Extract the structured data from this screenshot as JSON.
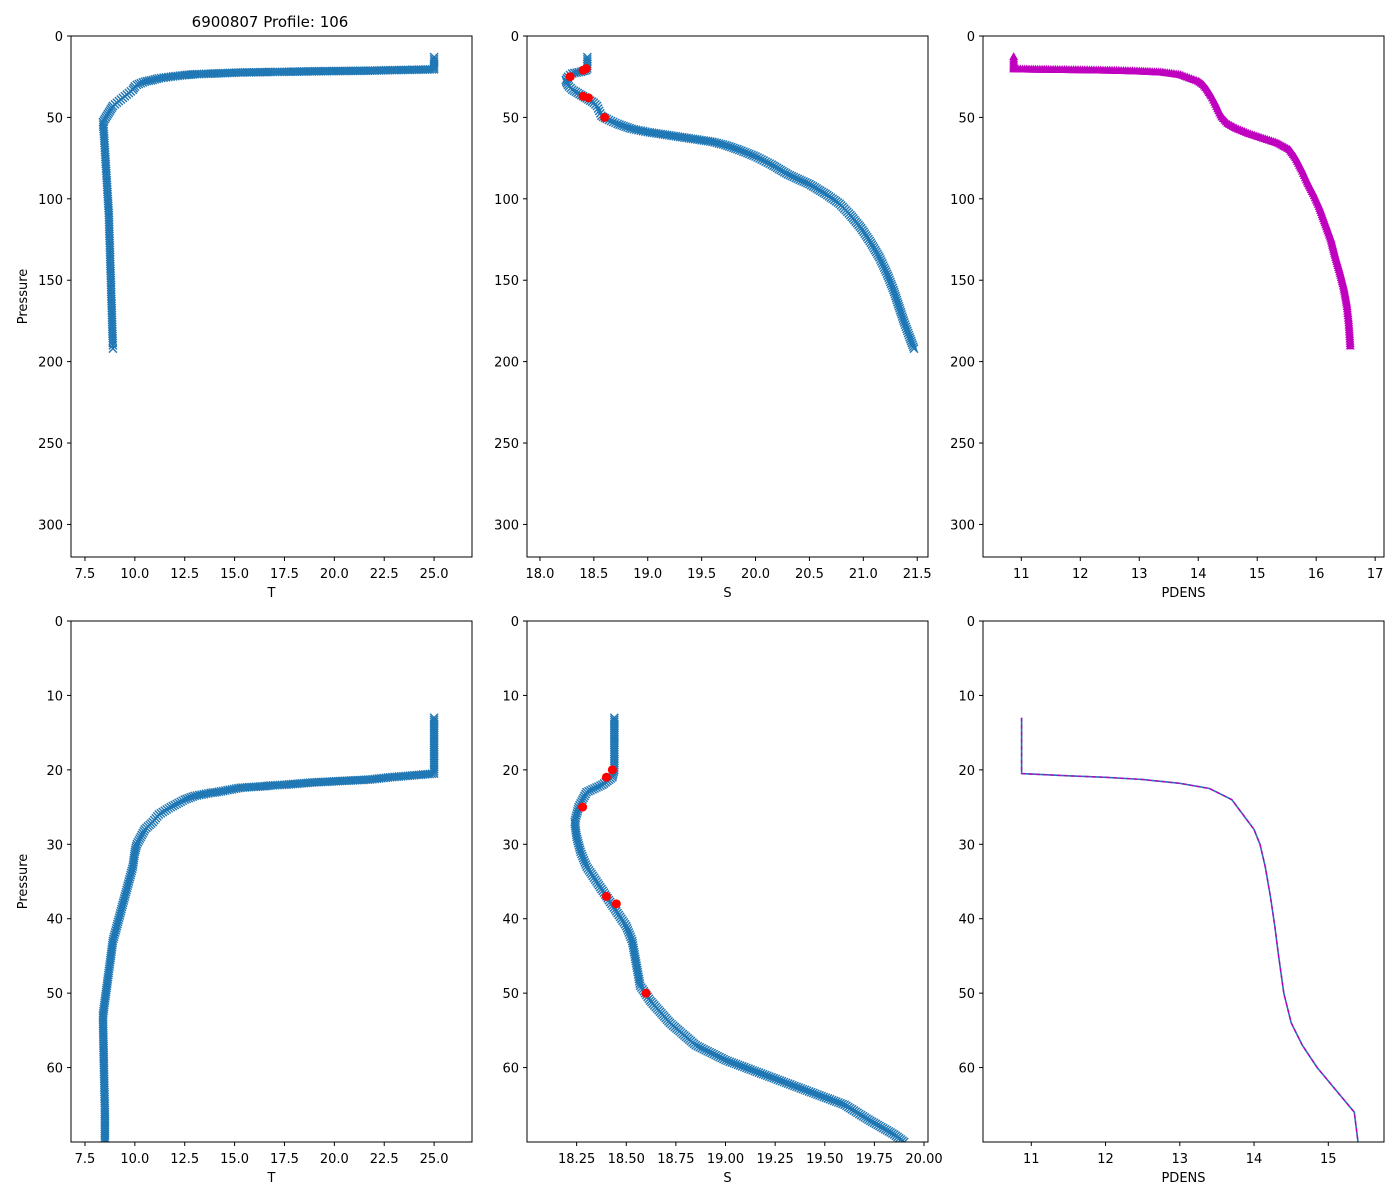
{
  "figure": {
    "title": "6900807 Profile: 106"
  },
  "colors": {
    "blue": "#1f77b4",
    "magenta": "#bf00bf",
    "red": "#ff0000",
    "axis": "#000000"
  },
  "chart_data": [
    {
      "type": "line",
      "panel": "top-left",
      "title": "6900807 Profile: 106",
      "xlabel": "T",
      "ylabel": "Pressure",
      "xlim": [
        6.8,
        26.9
      ],
      "ylim": [
        320,
        0
      ],
      "xticks": [
        "7.5",
        "10.0",
        "12.5",
        "15.0",
        "17.5",
        "20.0",
        "22.5",
        "25.0"
      ],
      "yticks": [
        "0",
        "50",
        "100",
        "150",
        "200",
        "250",
        "300"
      ],
      "marker": "x",
      "series": [
        {
          "name": "T",
          "points": [
            [
              25.0,
              13
            ],
            [
              25.0,
              17
            ],
            [
              25.0,
              20.5
            ],
            [
              22.8,
              21
            ],
            [
              21.8,
              21.3
            ],
            [
              20.3,
              21.5
            ],
            [
              18.9,
              21.7
            ],
            [
              17.5,
              22
            ],
            [
              16.8,
              22.1
            ],
            [
              16.5,
              22.2
            ],
            [
              15.3,
              22.4
            ],
            [
              14.1,
              23
            ],
            [
              13.8,
              23.1
            ],
            [
              13.0,
              23.5
            ],
            [
              12.5,
              24
            ],
            [
              11.8,
              25
            ],
            [
              11.2,
              26
            ],
            [
              10.9,
              27
            ],
            [
              10.5,
              28
            ],
            [
              10.3,
              29
            ],
            [
              10.1,
              30
            ],
            [
              10.0,
              31
            ],
            [
              9.9,
              33
            ],
            [
              9.7,
              35
            ],
            [
              9.5,
              37
            ],
            [
              9.3,
              39
            ],
            [
              9.1,
              41
            ],
            [
              8.9,
              43
            ],
            [
              8.8,
              45
            ],
            [
              8.7,
              47
            ],
            [
              8.6,
              49
            ],
            [
              8.5,
              51
            ],
            [
              8.4,
              53
            ],
            [
              8.45,
              60
            ],
            [
              8.5,
              70
            ],
            [
              8.55,
              80
            ],
            [
              8.6,
              90
            ],
            [
              8.65,
              100
            ],
            [
              8.7,
              110
            ],
            [
              8.72,
              120
            ],
            [
              8.75,
              130
            ],
            [
              8.77,
              140
            ],
            [
              8.8,
              150
            ],
            [
              8.82,
              160
            ],
            [
              8.85,
              170
            ],
            [
              8.87,
              180
            ],
            [
              8.9,
              190
            ],
            [
              8.9,
              192
            ]
          ]
        }
      ]
    },
    {
      "type": "line",
      "panel": "top-middle",
      "xlabel": "S",
      "ylabel": "",
      "xlim": [
        17.88,
        21.6
      ],
      "ylim": [
        320,
        0
      ],
      "xticks": [
        "18.0",
        "18.5",
        "19.0",
        "19.5",
        "20.0",
        "20.5",
        "21.0",
        "21.5"
      ],
      "yticks": [
        "0",
        "50",
        "100",
        "150",
        "200",
        "250",
        "300"
      ],
      "marker": "x",
      "series": [
        {
          "name": "S",
          "points": [
            [
              18.44,
              13
            ],
            [
              18.44,
              17
            ],
            [
              18.44,
              20
            ],
            [
              18.43,
              21
            ],
            [
              18.38,
              22
            ],
            [
              18.3,
              23
            ],
            [
              18.26,
              25
            ],
            [
              18.24,
              27
            ],
            [
              18.25,
              29
            ],
            [
              18.27,
              31
            ],
            [
              18.3,
              33
            ],
            [
              18.35,
              35
            ],
            [
              18.4,
              37
            ],
            [
              18.45,
              39
            ],
            [
              18.5,
              41
            ],
            [
              18.53,
              43
            ],
            [
              18.55,
              46
            ],
            [
              18.57,
              49
            ],
            [
              18.62,
              51
            ],
            [
              18.72,
              54
            ],
            [
              18.85,
              57
            ],
            [
              19.0,
              59
            ],
            [
              19.2,
              61
            ],
            [
              19.4,
              63
            ],
            [
              19.6,
              65
            ],
            [
              19.72,
              67
            ],
            [
              19.85,
              70
            ],
            [
              20.0,
              74
            ],
            [
              20.15,
              79
            ],
            [
              20.3,
              85
            ],
            [
              20.5,
              91
            ],
            [
              20.65,
              97
            ],
            [
              20.78,
              103
            ],
            [
              20.88,
              110
            ],
            [
              20.98,
              118
            ],
            [
              21.07,
              127
            ],
            [
              21.15,
              136
            ],
            [
              21.22,
              146
            ],
            [
              21.28,
              156
            ],
            [
              21.33,
              166
            ],
            [
              21.38,
              176
            ],
            [
              21.43,
              185
            ],
            [
              21.47,
              192
            ]
          ]
        }
      ],
      "flagged_points": [
        [
          18.43,
          20
        ],
        [
          18.4,
          21
        ],
        [
          18.28,
          25
        ],
        [
          18.4,
          37
        ],
        [
          18.45,
          38
        ],
        [
          18.6,
          50
        ]
      ]
    },
    {
      "type": "line",
      "panel": "top-right",
      "xlabel": "PDENS",
      "ylabel": "",
      "xlim": [
        10.35,
        17.15
      ],
      "ylim": [
        320,
        0
      ],
      "xticks": [
        "11",
        "12",
        "13",
        "14",
        "15",
        "16",
        "17"
      ],
      "yticks": [
        "0",
        "50",
        "100",
        "150",
        "200",
        "250",
        "300"
      ],
      "marker": "triangle",
      "series": [
        {
          "name": "PDENS",
          "points": [
            [
              10.87,
              13
            ],
            [
              10.87,
              17
            ],
            [
              10.87,
              20.5
            ],
            [
              11.5,
              20.8
            ],
            [
              12.0,
              21
            ],
            [
              12.5,
              21.3
            ],
            [
              13.0,
              21.8
            ],
            [
              13.4,
              22.5
            ],
            [
              13.7,
              24
            ],
            [
              13.85,
              26
            ],
            [
              14.0,
              28
            ],
            [
              14.08,
              30
            ],
            [
              14.15,
              33
            ],
            [
              14.22,
              37
            ],
            [
              14.28,
              41
            ],
            [
              14.33,
              45
            ],
            [
              14.4,
              50
            ],
            [
              14.5,
              54
            ],
            [
              14.65,
              57
            ],
            [
              14.85,
              60
            ],
            [
              15.1,
              63
            ],
            [
              15.35,
              66
            ],
            [
              15.55,
              70
            ],
            [
              15.65,
              75
            ],
            [
              15.75,
              82
            ],
            [
              15.85,
              90
            ],
            [
              15.95,
              97
            ],
            [
              16.05,
              105
            ],
            [
              16.15,
              115
            ],
            [
              16.25,
              125
            ],
            [
              16.32,
              135
            ],
            [
              16.4,
              145
            ],
            [
              16.47,
              155
            ],
            [
              16.52,
              165
            ],
            [
              16.55,
              175
            ],
            [
              16.57,
              185
            ],
            [
              16.58,
              192
            ]
          ]
        }
      ]
    },
    {
      "type": "line",
      "panel": "bottom-left",
      "xlabel": "T",
      "ylabel": "Pressure",
      "xlim": [
        6.8,
        26.9
      ],
      "ylim": [
        70,
        0
      ],
      "xticks": [
        "7.5",
        "10.0",
        "12.5",
        "15.0",
        "17.5",
        "20.0",
        "22.5",
        "25.0"
      ],
      "yticks": [
        "0",
        "10",
        "20",
        "30",
        "40",
        "50",
        "60"
      ],
      "marker": "x",
      "series": [
        {
          "name": "T",
          "points": [
            [
              25.0,
              13
            ],
            [
              25.0,
              17
            ],
            [
              25.0,
              20.5
            ],
            [
              22.8,
              21
            ],
            [
              21.8,
              21.3
            ],
            [
              20.3,
              21.5
            ],
            [
              18.9,
              21.7
            ],
            [
              17.5,
              22
            ],
            [
              16.8,
              22.1
            ],
            [
              16.5,
              22.2
            ],
            [
              15.3,
              22.4
            ],
            [
              14.1,
              23
            ],
            [
              13.8,
              23.1
            ],
            [
              13.0,
              23.5
            ],
            [
              12.5,
              24
            ],
            [
              11.8,
              25
            ],
            [
              11.2,
              26
            ],
            [
              10.9,
              27
            ],
            [
              10.5,
              28
            ],
            [
              10.3,
              29
            ],
            [
              10.1,
              30
            ],
            [
              10.0,
              31
            ],
            [
              9.9,
              33
            ],
            [
              9.7,
              35
            ],
            [
              9.5,
              37
            ],
            [
              9.3,
              39
            ],
            [
              9.1,
              41
            ],
            [
              8.9,
              43
            ],
            [
              8.8,
              45
            ],
            [
              8.7,
              47
            ],
            [
              8.6,
              49
            ],
            [
              8.5,
              51
            ],
            [
              8.4,
              53
            ],
            [
              8.45,
              60
            ],
            [
              8.5,
              66
            ],
            [
              8.5,
              70
            ]
          ]
        }
      ]
    },
    {
      "type": "line",
      "panel": "bottom-middle",
      "xlabel": "S",
      "ylabel": "",
      "xlim": [
        18.0,
        20.02
      ],
      "ylim": [
        70,
        0
      ],
      "xticks": [
        "18.25",
        "18.50",
        "18.75",
        "19.00",
        "19.25",
        "19.50",
        "19.75",
        "20.00"
      ],
      "yticks": [
        "0",
        "10",
        "20",
        "30",
        "40",
        "50",
        "60"
      ],
      "marker": "x",
      "series": [
        {
          "name": "S",
          "points": [
            [
              18.44,
              13
            ],
            [
              18.44,
              17
            ],
            [
              18.44,
              20
            ],
            [
              18.43,
              21
            ],
            [
              18.38,
              22
            ],
            [
              18.3,
              23
            ],
            [
              18.26,
              25
            ],
            [
              18.24,
              27
            ],
            [
              18.25,
              29
            ],
            [
              18.27,
              31
            ],
            [
              18.3,
              33
            ],
            [
              18.35,
              35
            ],
            [
              18.4,
              37
            ],
            [
              18.45,
              39
            ],
            [
              18.5,
              41
            ],
            [
              18.53,
              43
            ],
            [
              18.55,
              46
            ],
            [
              18.57,
              49
            ],
            [
              18.62,
              51
            ],
            [
              18.72,
              54
            ],
            [
              18.85,
              57
            ],
            [
              19.0,
              59
            ],
            [
              19.2,
              61
            ],
            [
              19.4,
              63
            ],
            [
              19.6,
              65
            ],
            [
              19.72,
              67
            ],
            [
              19.85,
              69
            ],
            [
              19.9,
              70
            ]
          ]
        }
      ],
      "flagged_points": [
        [
          18.43,
          20
        ],
        [
          18.4,
          21
        ],
        [
          18.28,
          25
        ],
        [
          18.4,
          37
        ],
        [
          18.45,
          38
        ],
        [
          18.6,
          50
        ]
      ]
    },
    {
      "type": "line",
      "panel": "bottom-right",
      "xlabel": "PDENS",
      "ylabel": "",
      "xlim": [
        10.35,
        15.75
      ],
      "ylim": [
        70,
        0
      ],
      "xticks": [
        "11",
        "12",
        "13",
        "14",
        "15"
      ],
      "yticks": [
        "0",
        "10",
        "20",
        "30",
        "40",
        "50",
        "60"
      ],
      "marker": "none",
      "series": [
        {
          "name": "PDENS",
          "points": [
            [
              10.87,
              13
            ],
            [
              10.87,
              17
            ],
            [
              10.87,
              20.5
            ],
            [
              11.5,
              20.8
            ],
            [
              12.0,
              21
            ],
            [
              12.5,
              21.3
            ],
            [
              13.0,
              21.8
            ],
            [
              13.4,
              22.5
            ],
            [
              13.7,
              24
            ],
            [
              13.85,
              26
            ],
            [
              14.0,
              28
            ],
            [
              14.08,
              30
            ],
            [
              14.15,
              33
            ],
            [
              14.22,
              37
            ],
            [
              14.28,
              41
            ],
            [
              14.33,
              45
            ],
            [
              14.4,
              50
            ],
            [
              14.5,
              54
            ],
            [
              14.65,
              57
            ],
            [
              14.85,
              60
            ],
            [
              15.1,
              63
            ],
            [
              15.35,
              66
            ],
            [
              15.4,
              70
            ]
          ]
        }
      ]
    }
  ]
}
